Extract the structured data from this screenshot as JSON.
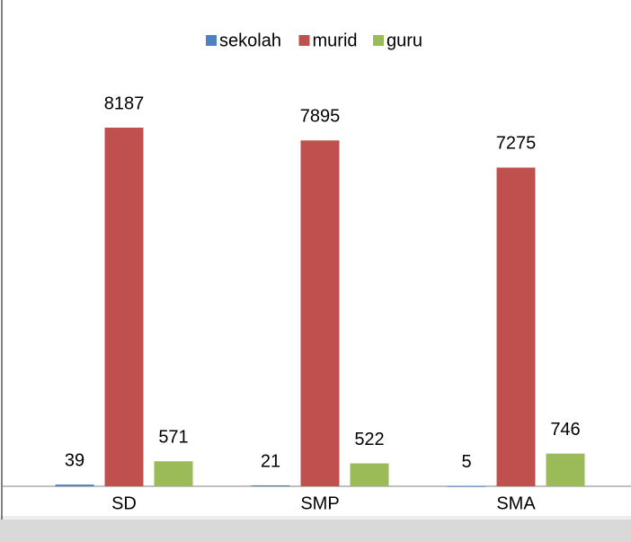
{
  "chart_data": {
    "type": "bar",
    "categories": [
      "SD",
      "SMP",
      "SMA"
    ],
    "series": [
      {
        "name": "sekolah",
        "color": "#4f81bd",
        "values": [
          39,
          21,
          5
        ]
      },
      {
        "name": "murid",
        "color": "#c0504d",
        "values": [
          8187,
          7895,
          7275
        ]
      },
      {
        "name": "guru",
        "color": "#9bbb59",
        "values": [
          571,
          522,
          746
        ]
      }
    ],
    "ylim": [
      0,
      9000
    ]
  }
}
